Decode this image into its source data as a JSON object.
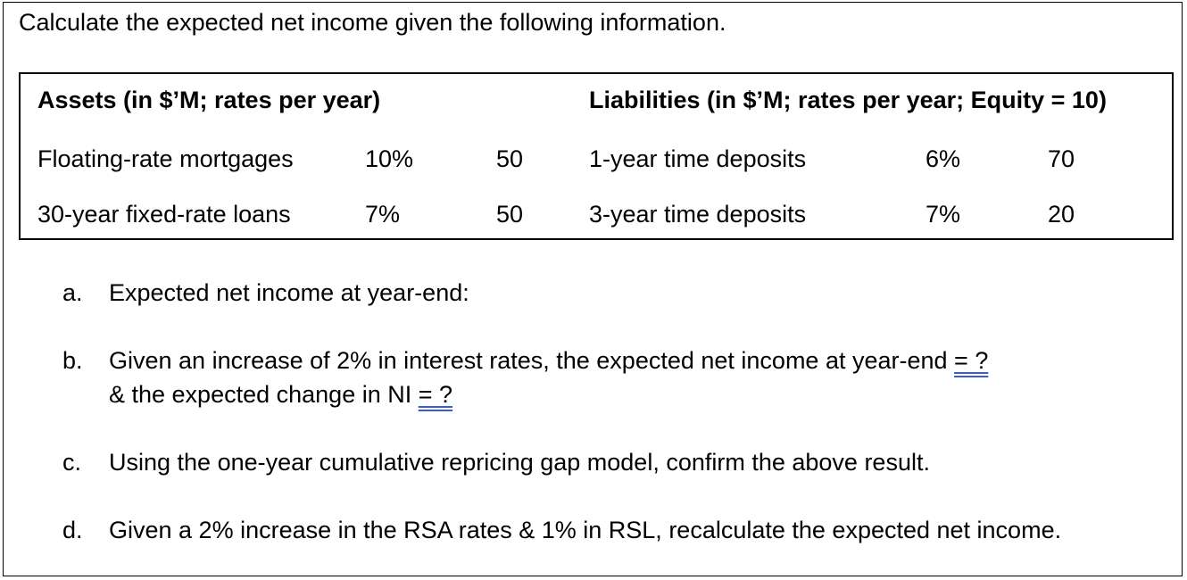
{
  "prompt": "Calculate the expected net income given the following information.",
  "table": {
    "assets_header": "Assets (in $’M; rates per year)",
    "liabilities_header": "Liabilities (in $’M; rates per year; Equity = 10)",
    "assets": [
      {
        "name": "Floating-rate mortgages",
        "rate": "10%",
        "amount": "50"
      },
      {
        "name": "30-year fixed-rate loans",
        "rate": "7%",
        "amount": "50"
      }
    ],
    "liabilities": [
      {
        "name": "1-year time deposits",
        "rate": "6%",
        "amount": "70"
      },
      {
        "name": "3-year time deposits",
        "rate": "7%",
        "amount": "20"
      }
    ]
  },
  "questions": {
    "a": {
      "letter": "a.",
      "text": "Expected net income at year-end:"
    },
    "b": {
      "letter": "b.",
      "line1": "Given an increase of 2% in interest rates, the expected net income at year-end",
      "line1_suffix": "= ?",
      "line2": "& the expected change in NI",
      "line2_suffix": "= ?"
    },
    "c": {
      "letter": "c.",
      "text": "Using the one-year cumulative repricing gap model, confirm the above result."
    },
    "d": {
      "letter": "d.",
      "text": "Given a 2% increase in the RSA rates & 1% in RSL, recalculate the expected net income."
    }
  }
}
